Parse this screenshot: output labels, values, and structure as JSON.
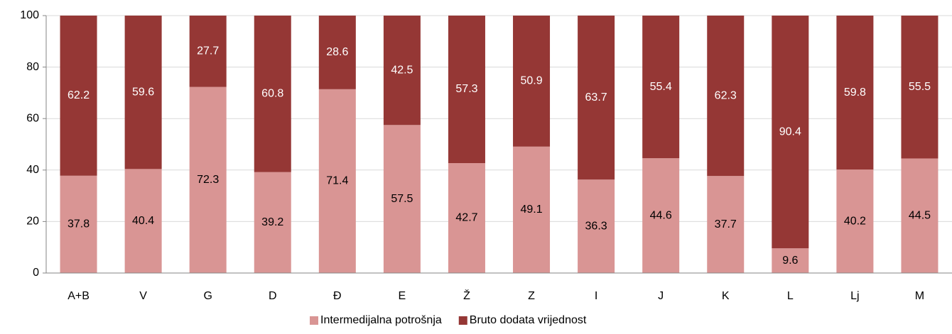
{
  "chart_data": {
    "type": "stacked_bar",
    "categories": [
      "A+B",
      "V",
      "G",
      "D",
      "Đ",
      "E",
      "Ž",
      "Z",
      "I",
      "J",
      "K",
      "L",
      "Lj",
      "M"
    ],
    "series": [
      {
        "name": "Intermedijalna potrošnja",
        "color": "#d99594",
        "label_color": "#000000",
        "values": [
          37.8,
          40.4,
          72.3,
          39.2,
          71.4,
          57.5,
          42.7,
          49.1,
          36.3,
          44.6,
          37.7,
          9.6,
          40.2,
          44.5
        ]
      },
      {
        "name": "Bruto dodata vrijednost",
        "color": "#953735",
        "label_color": "#ffffff",
        "values": [
          62.2,
          59.6,
          27.7,
          60.8,
          28.6,
          42.5,
          57.3,
          50.9,
          63.7,
          55.4,
          62.3,
          90.4,
          59.8,
          55.5
        ]
      }
    ],
    "ylim": [
      0,
      100
    ],
    "yticks": [
      0,
      20,
      40,
      60,
      80,
      100
    ],
    "grid": true,
    "legend": "bottom"
  }
}
